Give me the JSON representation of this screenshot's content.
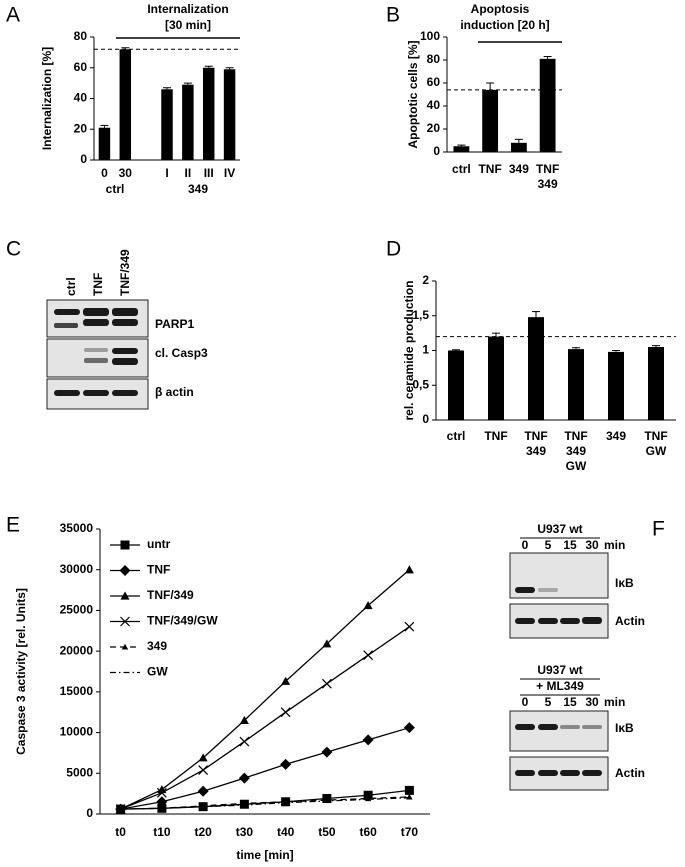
{
  "chart_data": [
    {
      "type": "bar",
      "panel": "A",
      "title": "Internalization",
      "subtitle": "[30 min]",
      "ylabel": "Internalization [%]",
      "categories": [
        "0",
        "30",
        null,
        "I",
        "II",
        "III",
        "IV"
      ],
      "group_labels": [
        "ctrl",
        "349"
      ],
      "values": [
        21,
        72,
        null,
        46,
        49,
        60,
        59
      ],
      "errors": [
        1.5,
        1,
        null,
        1,
        1,
        1,
        1
      ],
      "color": "#000000",
      "ref_line": 72,
      "ylim": [
        0,
        80
      ],
      "yticks": [
        0,
        20,
        40,
        60,
        80
      ]
    },
    {
      "type": "bar",
      "panel": "B",
      "title": "Apoptosis",
      "subtitle": "induction [20 h]",
      "ylabel": "Apoptotic cells [%]",
      "categories": [
        "ctrl",
        "TNF",
        "349",
        [
          "TNF",
          "349"
        ]
      ],
      "values": [
        5,
        54,
        8,
        81
      ],
      "errors": [
        1,
        6,
        3,
        2
      ],
      "color": "#000000",
      "ref_line": 54,
      "ylim": [
        0,
        100
      ],
      "yticks": [
        0,
        20,
        40,
        60,
        80,
        100
      ]
    },
    {
      "type": "bar",
      "panel": "D",
      "ylabel": "rel. ceramide production",
      "categories": [
        "ctrl",
        "TNF",
        [
          "TNF",
          "349"
        ],
        [
          "TNF",
          "349",
          "GW"
        ],
        "349",
        [
          "TNF",
          "GW"
        ]
      ],
      "values": [
        1.0,
        1.2,
        1.48,
        1.02,
        0.98,
        1.05
      ],
      "errors": [
        0.01,
        0.05,
        0.08,
        0.02,
        0.02,
        0.02
      ],
      "color": "#000000",
      "ref_line": 1.2,
      "ylim": [
        0,
        2
      ],
      "yticks": [
        0,
        {
          "value": 0.5,
          "label": "0,5"
        },
        1,
        {
          "value": 1.5,
          "label": "1,5"
        },
        2
      ]
    },
    {
      "type": "line",
      "panel": "E",
      "xlabel": "time [min]",
      "ylabel": "Caspase 3 activity [rel. Units]",
      "categories": [
        "t0",
        "t10",
        "t20",
        "t30",
        "t40",
        "t50",
        "t60",
        "t70"
      ],
      "series": [
        {
          "name": "untr",
          "color": "#000000",
          "marker": "square",
          "dash": "solid",
          "values": [
            600,
            700,
            900,
            1200,
            1500,
            1900,
            2300,
            2900
          ]
        },
        {
          "name": "TNF",
          "color": "#000000",
          "marker": "diamond",
          "dash": "solid",
          "values": [
            600,
            1500,
            2800,
            4400,
            6100,
            7600,
            9100,
            10600
          ]
        },
        {
          "name": "TNF/349",
          "color": "#000000",
          "marker": "triangle",
          "dash": "solid",
          "values": [
            600,
            3000,
            6900,
            11500,
            16300,
            20900,
            25600,
            30000
          ]
        },
        {
          "name": "TNF/349/GW",
          "color": "#000000",
          "marker": "x",
          "dash": "solid",
          "values": [
            600,
            2600,
            5400,
            8900,
            12500,
            16000,
            19500,
            23000
          ]
        },
        {
          "name": "349",
          "color": "#000000",
          "marker": "triangle",
          "dash": "dashed",
          "values": [
            600,
            700,
            1000,
            1300,
            1500,
            1700,
            1900,
            2100
          ]
        },
        {
          "name": "GW",
          "color": "#000000",
          "marker": "none",
          "dash": "dashdot",
          "values": [
            600,
            700,
            900,
            1100,
            1400,
            1600,
            1800,
            2000
          ]
        }
      ],
      "legend": "upper left",
      "ylim": [
        0,
        35000
      ],
      "yticks": [
        0,
        5000,
        10000,
        15000,
        20000,
        25000,
        30000,
        35000
      ]
    }
  ],
  "blots": [
    {
      "panel": "C",
      "lanes": [
        "ctrl",
        "TNF",
        "TNF/349"
      ],
      "bands": [
        "PARP1",
        "cl. Casp3",
        "β actin"
      ]
    },
    {
      "panel": "F",
      "groups": [
        {
          "header": [
            "U937 wt"
          ],
          "lanes": [
            "0",
            "5",
            "15",
            "30"
          ],
          "unit": "min",
          "bands": [
            "IκB",
            "Actin"
          ]
        },
        {
          "header": [
            "U937 wt",
            "+ ML349"
          ],
          "lanes": [
            "0",
            "5",
            "15",
            "30"
          ],
          "unit": "min",
          "bands": [
            "IκB",
            "Actin"
          ]
        }
      ]
    }
  ]
}
